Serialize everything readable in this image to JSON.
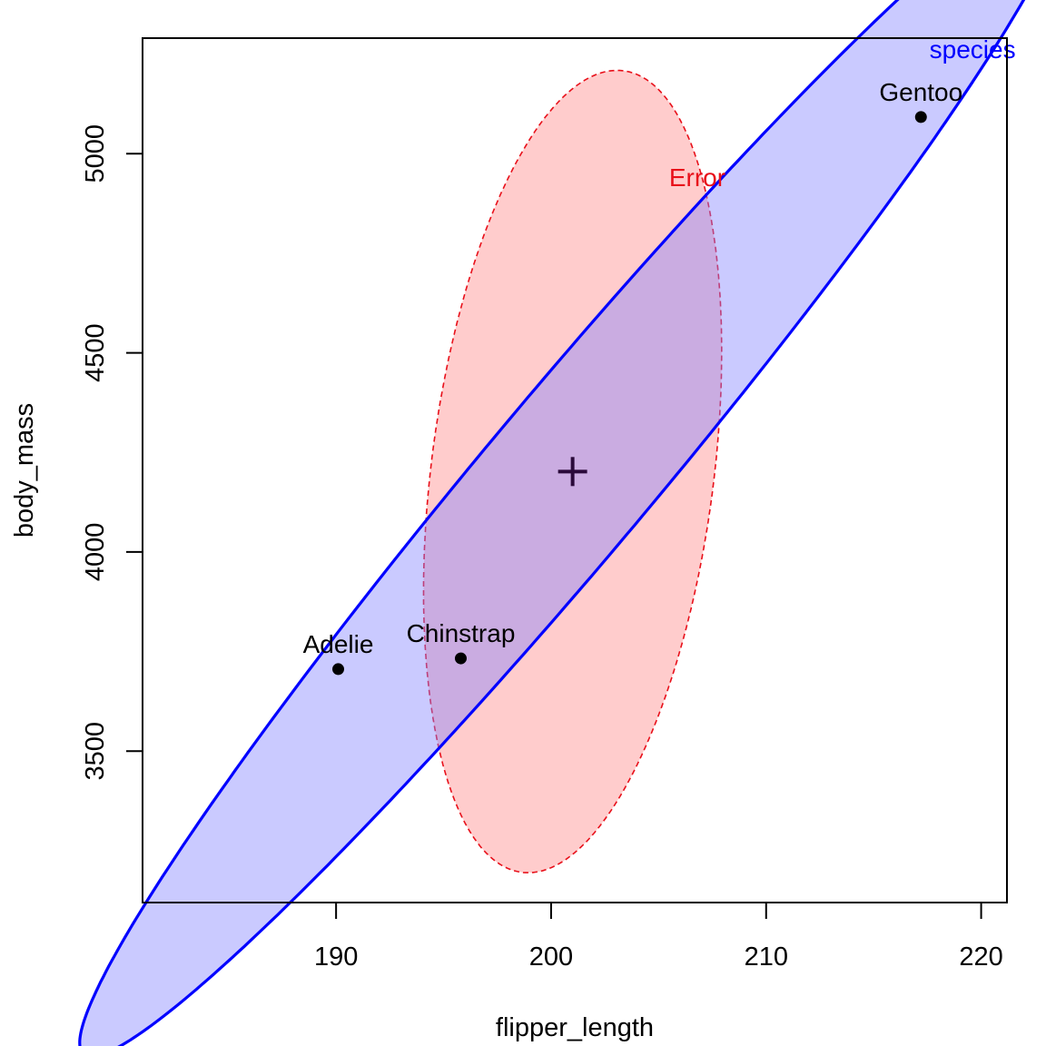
{
  "chart_data": {
    "type": "scatter",
    "xlabel": "flipper_length",
    "ylabel": "body_mass",
    "xlim": [
      181,
      221.2
    ],
    "ylim": [
      3120,
      5290
    ],
    "xticks": [
      190,
      200,
      210,
      220
    ],
    "yticks": [
      3500,
      4000,
      4500,
      5000
    ],
    "xtick_labels": [
      "190",
      "200",
      "210",
      "220"
    ],
    "ytick_labels": [
      "3500",
      "4000",
      "4500",
      "5000"
    ],
    "grand_mean": {
      "x": 201,
      "y": 4202
    },
    "points": [
      {
        "label": "Adelie",
        "x": 190.1,
        "y": 3706
      },
      {
        "label": "Chinstrap",
        "x": 195.8,
        "y": 3733
      },
      {
        "label": "Gentoo",
        "x": 217.2,
        "y": 5092
      }
    ],
    "ellipses": [
      {
        "name": "Error",
        "center": [
          201,
          4202
        ],
        "stroke": "#e8101a",
        "fill": "#ff8080",
        "fill_opacity": 0.4,
        "dashed": true,
        "label_point": [
          206.8,
          4918
        ],
        "outline": [
          [
            201,
            4202
          ],
          [
            207.2,
            4901
          ],
          [
            209.5,
            4826
          ],
          [
            211,
            4595
          ],
          [
            210.3,
            4176
          ],
          [
            207.1,
            3773
          ],
          [
            200.9,
            3528
          ],
          [
            195.1,
            3511
          ],
          [
            192.2,
            3582
          ],
          [
            190.9,
            3740
          ],
          [
            191.6,
            4005
          ],
          [
            194.6,
            4415
          ],
          [
            200.7,
            4809
          ],
          [
            204.7,
            4901
          ]
        ]
      },
      {
        "name": "species",
        "center": [
          201,
          4202
        ],
        "stroke": "#0000ff",
        "fill": "#8080ff",
        "fill_opacity": 0.42,
        "dashed": false,
        "label_point": [
          219.6,
          5240
        ],
        "outline": [
          [
            201,
            4202
          ],
          [
            219.6,
            5180
          ],
          [
            218.8,
            5102
          ],
          [
            213.4,
            4684
          ],
          [
            206.2,
            4084
          ],
          [
            197.4,
            3439
          ],
          [
            188.5,
            3356
          ],
          [
            183.2,
            3207
          ],
          [
            182.6,
            3222
          ],
          [
            187.9,
            3575
          ],
          [
            195.7,
            4187
          ],
          [
            205.2,
            4849
          ],
          [
            212.2,
            5062
          ],
          [
            218.2,
            5203
          ]
        ]
      }
    ]
  }
}
